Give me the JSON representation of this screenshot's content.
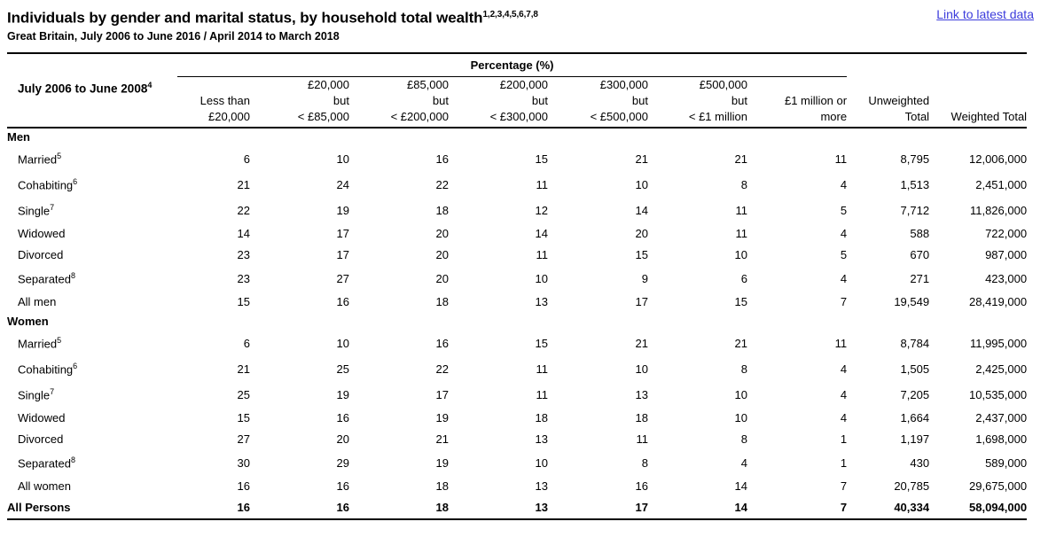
{
  "header": {
    "title": "Individuals by gender and marital status, by household total wealth",
    "title_superscript": "1,2,3,4,5,6,7,8",
    "subtitle": "Great Britain, July 2006 to June 2016 / April 2014 to March 2018",
    "link_label": "Link to latest data",
    "link_color": "#3c3cdc"
  },
  "table": {
    "period": {
      "label": "July 2006 to June 2008",
      "superscript": "4"
    },
    "group_header": "Percentage (%)",
    "columns": [
      {
        "lines": [
          "",
          "Less than",
          "£20,000"
        ]
      },
      {
        "lines": [
          "£20,000",
          "but",
          "< £85,000"
        ]
      },
      {
        "lines": [
          "£85,000",
          "but",
          "< £200,000"
        ]
      },
      {
        "lines": [
          "£200,000",
          "but",
          "< £300,000"
        ]
      },
      {
        "lines": [
          "£300,000",
          "but",
          "< £500,000"
        ]
      },
      {
        "lines": [
          "£500,000",
          "but",
          "< £1 million"
        ]
      },
      {
        "lines": [
          "",
          "£1 million or",
          "more"
        ]
      },
      {
        "lines": [
          "",
          "Unweighted",
          "Total"
        ]
      },
      {
        "lines": [
          "",
          "",
          "Weighted Total"
        ]
      }
    ],
    "rows": [
      {
        "type": "section",
        "label": "Men"
      },
      {
        "type": "data",
        "label": "Married",
        "superscript": "5",
        "values": [
          "6",
          "10",
          "16",
          "15",
          "21",
          "21",
          "11",
          "8,795",
          "12,006,000"
        ]
      },
      {
        "type": "data",
        "label": "Cohabiting",
        "superscript": "6",
        "values": [
          "21",
          "24",
          "22",
          "11",
          "10",
          "8",
          "4",
          "1,513",
          "2,451,000"
        ]
      },
      {
        "type": "data",
        "label": "Single",
        "superscript": "7",
        "values": [
          "22",
          "19",
          "18",
          "12",
          "14",
          "11",
          "5",
          "7,712",
          "11,826,000"
        ]
      },
      {
        "type": "data",
        "label": "Widowed",
        "values": [
          "14",
          "17",
          "20",
          "14",
          "20",
          "11",
          "4",
          "588",
          "722,000"
        ]
      },
      {
        "type": "data",
        "label": "Divorced",
        "values": [
          "23",
          "17",
          "20",
          "11",
          "15",
          "10",
          "5",
          "670",
          "987,000"
        ]
      },
      {
        "type": "data",
        "label": "Separated",
        "superscript": "8",
        "values": [
          "23",
          "27",
          "20",
          "10",
          "9",
          "6",
          "4",
          "271",
          "423,000"
        ]
      },
      {
        "type": "data",
        "label": "All men",
        "values": [
          "15",
          "16",
          "18",
          "13",
          "17",
          "15",
          "7",
          "19,549",
          "28,419,000"
        ]
      },
      {
        "type": "section",
        "label": "Women"
      },
      {
        "type": "data",
        "label": "Married",
        "superscript": "5",
        "values": [
          "6",
          "10",
          "16",
          "15",
          "21",
          "21",
          "11",
          "8,784",
          "11,995,000"
        ]
      },
      {
        "type": "data",
        "label": "Cohabiting",
        "superscript": "6",
        "values": [
          "21",
          "25",
          "22",
          "11",
          "10",
          "8",
          "4",
          "1,505",
          "2,425,000"
        ]
      },
      {
        "type": "data",
        "label": "Single",
        "superscript": "7",
        "values": [
          "25",
          "19",
          "17",
          "11",
          "13",
          "10",
          "4",
          "7,205",
          "10,535,000"
        ]
      },
      {
        "type": "data",
        "label": "Widowed",
        "values": [
          "15",
          "16",
          "19",
          "18",
          "18",
          "10",
          "4",
          "1,664",
          "2,437,000"
        ]
      },
      {
        "type": "data",
        "label": "Divorced",
        "values": [
          "27",
          "20",
          "21",
          "13",
          "11",
          "8",
          "1",
          "1,197",
          "1,698,000"
        ]
      },
      {
        "type": "data",
        "label": "Separated",
        "superscript": "8",
        "values": [
          "30",
          "29",
          "19",
          "10",
          "8",
          "4",
          "1",
          "430",
          "589,000"
        ]
      },
      {
        "type": "data",
        "label": "All women",
        "values": [
          "16",
          "16",
          "18",
          "13",
          "16",
          "14",
          "7",
          "20,785",
          "29,675,000"
        ]
      },
      {
        "type": "total",
        "label": "All Persons",
        "values": [
          "16",
          "16",
          "18",
          "13",
          "17",
          "14",
          "7",
          "40,334",
          "58,094,000"
        ]
      }
    ]
  }
}
